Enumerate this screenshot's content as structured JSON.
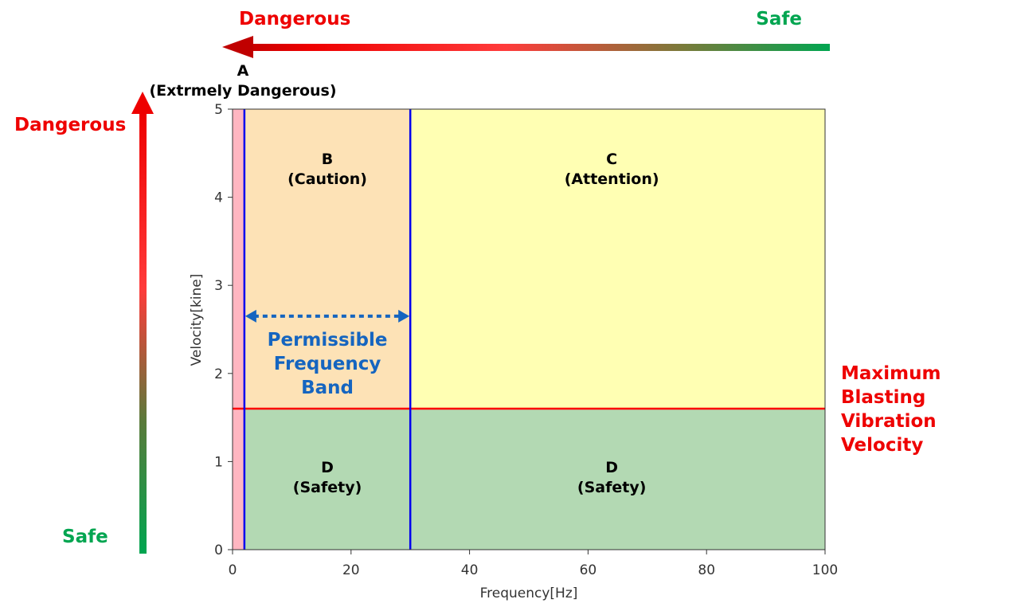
{
  "chart_data": {
    "type": "area",
    "title": "",
    "xlabel": "Frequency[Hz]",
    "ylabel": "Velocity[kine]",
    "xlim": [
      0,
      100
    ],
    "ylim": [
      0,
      5
    ],
    "x_ticks": [
      0,
      20,
      40,
      60,
      80,
      100
    ],
    "y_ticks": [
      0,
      1,
      2,
      3,
      4,
      5
    ],
    "grid": false,
    "regions": [
      {
        "x0": 0,
        "x1": 2,
        "y0": 0,
        "y1": 5,
        "color": "#ffb6c1",
        "zone": "A",
        "label_line1": "A",
        "label_line2": "(Extrmely Dangerous)"
      },
      {
        "x0": 2,
        "x1": 30,
        "y0": 1.6,
        "y1": 5,
        "color": "#fde2b6",
        "zone": "B",
        "label_line1": "B",
        "label_line2": "(Caution)"
      },
      {
        "x0": 30,
        "x1": 100,
        "y0": 1.6,
        "y1": 5,
        "color": "#ffffb3",
        "zone": "C",
        "label_line1": "C",
        "label_line2": "(Attention)"
      },
      {
        "x0": 2,
        "x1": 30,
        "y0": 0,
        "y1": 1.6,
        "color": "#b3d9b3",
        "zone": "D-left",
        "label_line1": "D",
        "label_line2": "(Safety)"
      },
      {
        "x0": 30,
        "x1": 100,
        "y0": 0,
        "y1": 1.6,
        "color": "#b3d9b3",
        "zone": "D-right",
        "label_line1": "D",
        "label_line2": "(Safety)"
      }
    ],
    "vertical_lines": [
      {
        "x": 2,
        "color": "#0000ee"
      },
      {
        "x": 30,
        "color": "#0000ee"
      }
    ],
    "horizontal_line": {
      "y": 1.6,
      "color": "#ff0000",
      "label": [
        "Maximum",
        "Blasting",
        "Vibration",
        "Velocity"
      ]
    },
    "band": {
      "x0": 2,
      "x1": 30,
      "y": 2.65,
      "color": "#1565c0",
      "label": [
        "Permissible",
        "Frequency",
        "Band"
      ]
    },
    "top_arrow": {
      "left_label": "Dangerous",
      "right_label": "Safe"
    },
    "left_arrow": {
      "top_label": "Dangerous",
      "bottom_label": "Safe"
    },
    "colors": {
      "danger": "#ee0000",
      "safe": "#00a550",
      "axis": "#333333"
    }
  }
}
